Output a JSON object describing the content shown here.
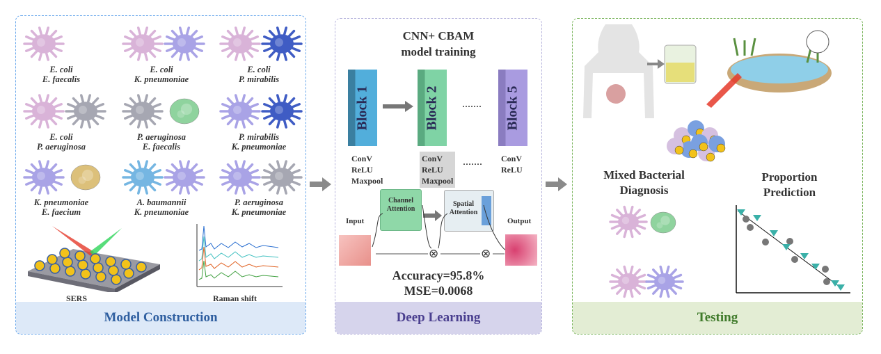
{
  "panels": {
    "construction": {
      "footer": "Model Construction",
      "border_color": "#6aa8ec",
      "pairs": [
        {
          "top": "E. coli",
          "bottom": "E. faecalis"
        },
        {
          "top": "E. coli",
          "bottom": "K. pneumoniae"
        },
        {
          "top": "E. coli",
          "bottom": "P. mirabilis"
        },
        {
          "top": "E. coli",
          "bottom": "P. aeruginosa"
        },
        {
          "top": "P. aeruginosa",
          "bottom": "E. faecalis"
        },
        {
          "top": "P. mirabilis",
          "bottom": "K. pneumoniae"
        },
        {
          "top": "K. pneumoniae",
          "bottom": "E. faecium"
        },
        {
          "top": "A. baumannii",
          "bottom": "K. pneumoniae"
        },
        {
          "top": "P. aeruginosa",
          "bottom": "K. pneumoniae"
        }
      ],
      "sers_label": "SERS",
      "raman_label": "Raman shift"
    },
    "deep_learning": {
      "title_line1": "CNN+ CBAM",
      "title_line2": "model training",
      "blocks": [
        "Block 1",
        "Block 2",
        "Block 5"
      ],
      "layer_ops": [
        "ConV",
        "ReLU",
        "Maxpool"
      ],
      "ellipsis": "·······",
      "channel_attention": "Channel Attention",
      "spatial_attention": "Spatial Attention",
      "input_label": "Input",
      "output_label": "Output",
      "multiply_symbol": "⊗",
      "accuracy": "Accuracy=95.8%",
      "mse": "MSE=0.0068",
      "footer": "Deep Learning",
      "border_color": "#b6b3dc"
    },
    "testing": {
      "diagnosis_label": "Mixed Bacterial Diagnosis",
      "prediction_label": "Proportion Prediction",
      "footer": "Testing",
      "border_color": "#7ab55c"
    }
  }
}
